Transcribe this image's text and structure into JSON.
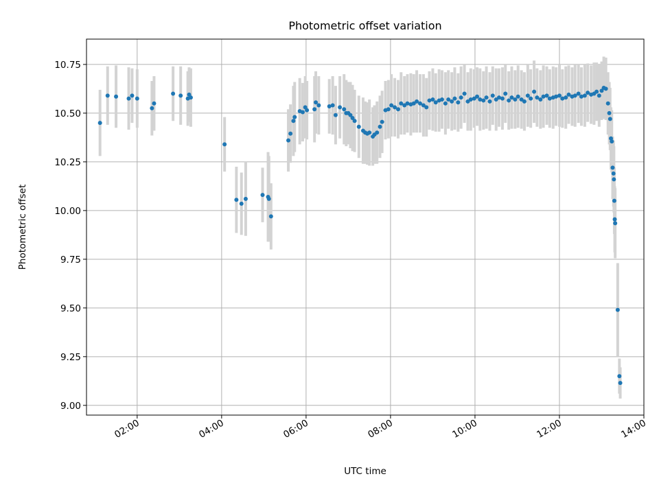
{
  "chart_data": {
    "type": "scatter",
    "title": "Photometric offset variation",
    "xlabel": "UTC time",
    "ylabel": "Photometric offset",
    "xlim_hours": [
      0.8,
      14.0
    ],
    "ylim": [
      8.95,
      10.88
    ],
    "grid": true,
    "x_ticks": [
      {
        "value": 2,
        "label": "02:00"
      },
      {
        "value": 4,
        "label": "04:00"
      },
      {
        "value": 6,
        "label": "06:00"
      },
      {
        "value": 8,
        "label": "08:00"
      },
      {
        "value": 10,
        "label": "10:00"
      },
      {
        "value": 12,
        "label": "12:00"
      },
      {
        "value": 14,
        "label": "14:00"
      }
    ],
    "y_ticks": [
      {
        "value": 9.0,
        "label": "9.00"
      },
      {
        "value": 9.25,
        "label": "9.25"
      },
      {
        "value": 9.5,
        "label": "9.50"
      },
      {
        "value": 9.75,
        "label": "9.75"
      },
      {
        "value": 10.0,
        "label": "10.00"
      },
      {
        "value": 10.25,
        "label": "10.25"
      },
      {
        "value": 10.5,
        "label": "10.50"
      },
      {
        "value": 10.75,
        "label": "10.75"
      }
    ],
    "marker_color": "#1f77b4",
    "errorbar_color": "#d3d3d3",
    "points": [
      [
        1.12,
        10.45,
        0.17
      ],
      [
        1.3,
        10.59,
        0.15
      ],
      [
        1.5,
        10.585,
        0.16
      ],
      [
        1.8,
        10.575,
        0.16
      ],
      [
        1.88,
        10.59,
        0.14
      ],
      [
        2.0,
        10.575,
        0.15
      ],
      [
        2.35,
        10.525,
        0.14
      ],
      [
        2.4,
        10.55,
        0.14
      ],
      [
        2.85,
        10.6,
        0.14
      ],
      [
        3.03,
        10.59,
        0.15
      ],
      [
        3.2,
        10.575,
        0.14
      ],
      [
        3.23,
        10.595,
        0.14
      ],
      [
        3.27,
        10.58,
        0.15
      ],
      [
        4.07,
        10.34,
        0.14
      ],
      [
        4.35,
        10.055,
        0.17
      ],
      [
        4.47,
        10.035,
        0.16
      ],
      [
        4.57,
        10.06,
        0.19
      ],
      [
        4.97,
        10.08,
        0.14
      ],
      [
        5.1,
        10.07,
        0.23
      ],
      [
        5.12,
        10.06,
        0.22
      ],
      [
        5.17,
        9.97,
        0.17
      ],
      [
        5.58,
        10.36,
        0.16
      ],
      [
        5.63,
        10.395,
        0.15
      ],
      [
        5.7,
        10.46,
        0.18
      ],
      [
        5.73,
        10.48,
        0.18
      ],
      [
        5.85,
        10.51,
        0.17
      ],
      [
        5.92,
        10.505,
        0.15
      ],
      [
        5.98,
        10.53,
        0.16
      ],
      [
        6.02,
        10.515,
        0.15
      ],
      [
        6.2,
        10.52,
        0.17
      ],
      [
        6.23,
        10.555,
        0.16
      ],
      [
        6.3,
        10.54,
        0.15
      ],
      [
        6.55,
        10.535,
        0.14
      ],
      [
        6.63,
        10.54,
        0.15
      ],
      [
        6.7,
        10.49,
        0.15
      ],
      [
        6.8,
        10.53,
        0.16
      ],
      [
        6.9,
        10.52,
        0.18
      ],
      [
        6.95,
        10.5,
        0.17
      ],
      [
        7.0,
        10.5,
        0.16
      ],
      [
        7.05,
        10.49,
        0.17
      ],
      [
        7.1,
        10.475,
        0.17
      ],
      [
        7.15,
        10.46,
        0.16
      ],
      [
        7.25,
        10.43,
        0.16
      ],
      [
        7.35,
        10.41,
        0.17
      ],
      [
        7.4,
        10.4,
        0.16
      ],
      [
        7.45,
        10.395,
        0.16
      ],
      [
        7.5,
        10.4,
        0.17
      ],
      [
        7.58,
        10.38,
        0.15
      ],
      [
        7.62,
        10.39,
        0.15
      ],
      [
        7.68,
        10.4,
        0.16
      ],
      [
        7.75,
        10.43,
        0.16
      ],
      [
        7.8,
        10.455,
        0.16
      ],
      [
        7.88,
        10.515,
        0.15
      ],
      [
        7.95,
        10.52,
        0.15
      ],
      [
        8.02,
        10.54,
        0.16
      ],
      [
        8.1,
        10.53,
        0.15
      ],
      [
        8.18,
        10.52,
        0.15
      ],
      [
        8.25,
        10.55,
        0.16
      ],
      [
        8.33,
        10.54,
        0.15
      ],
      [
        8.4,
        10.55,
        0.15
      ],
      [
        8.48,
        10.545,
        0.16
      ],
      [
        8.55,
        10.55,
        0.15
      ],
      [
        8.62,
        10.56,
        0.16
      ],
      [
        8.7,
        10.55,
        0.15
      ],
      [
        8.78,
        10.54,
        0.16
      ],
      [
        8.85,
        10.53,
        0.15
      ],
      [
        8.92,
        10.565,
        0.15
      ],
      [
        9.0,
        10.57,
        0.16
      ],
      [
        9.07,
        10.555,
        0.15
      ],
      [
        9.15,
        10.565,
        0.16
      ],
      [
        9.22,
        10.57,
        0.15
      ],
      [
        9.3,
        10.55,
        0.16
      ],
      [
        9.37,
        10.57,
        0.15
      ],
      [
        9.45,
        10.56,
        0.15
      ],
      [
        9.52,
        10.575,
        0.16
      ],
      [
        9.6,
        10.555,
        0.15
      ],
      [
        9.67,
        10.58,
        0.16
      ],
      [
        9.75,
        10.6,
        0.15
      ],
      [
        9.83,
        10.56,
        0.15
      ],
      [
        9.9,
        10.57,
        0.16
      ],
      [
        9.98,
        10.575,
        0.15
      ],
      [
        10.05,
        10.585,
        0.15
      ],
      [
        10.12,
        10.57,
        0.16
      ],
      [
        10.2,
        10.565,
        0.15
      ],
      [
        10.27,
        10.58,
        0.16
      ],
      [
        10.35,
        10.56,
        0.15
      ],
      [
        10.42,
        10.59,
        0.15
      ],
      [
        10.5,
        10.57,
        0.16
      ],
      [
        10.57,
        10.58,
        0.15
      ],
      [
        10.65,
        10.575,
        0.16
      ],
      [
        10.72,
        10.6,
        0.15
      ],
      [
        10.8,
        10.565,
        0.15
      ],
      [
        10.87,
        10.58,
        0.16
      ],
      [
        10.95,
        10.57,
        0.15
      ],
      [
        11.02,
        10.585,
        0.16
      ],
      [
        11.1,
        10.57,
        0.15
      ],
      [
        11.17,
        10.56,
        0.15
      ],
      [
        11.25,
        10.59,
        0.16
      ],
      [
        11.32,
        10.575,
        0.15
      ],
      [
        11.4,
        10.61,
        0.16
      ],
      [
        11.47,
        10.58,
        0.15
      ],
      [
        11.55,
        10.57,
        0.15
      ],
      [
        11.62,
        10.585,
        0.16
      ],
      [
        11.7,
        10.59,
        0.15
      ],
      [
        11.77,
        10.575,
        0.15
      ],
      [
        11.85,
        10.58,
        0.16
      ],
      [
        11.92,
        10.585,
        0.15
      ],
      [
        12.0,
        10.59,
        0.16
      ],
      [
        12.07,
        10.575,
        0.15
      ],
      [
        12.15,
        10.58,
        0.16
      ],
      [
        12.22,
        10.595,
        0.15
      ],
      [
        12.3,
        10.585,
        0.15
      ],
      [
        12.37,
        10.59,
        0.16
      ],
      [
        12.45,
        10.6,
        0.15
      ],
      [
        12.52,
        10.585,
        0.15
      ],
      [
        12.6,
        10.59,
        0.16
      ],
      [
        12.67,
        10.605,
        0.15
      ],
      [
        12.75,
        10.595,
        0.15
      ],
      [
        12.82,
        10.6,
        0.16
      ],
      [
        12.88,
        10.61,
        0.15
      ],
      [
        12.94,
        10.59,
        0.16
      ],
      [
        13.0,
        10.615,
        0.15
      ],
      [
        13.05,
        10.63,
        0.16
      ],
      [
        13.1,
        10.625,
        0.16
      ],
      [
        13.15,
        10.55,
        0.16
      ],
      [
        13.18,
        10.5,
        0.16
      ],
      [
        13.2,
        10.47,
        0.16
      ],
      [
        13.22,
        10.37,
        0.16
      ],
      [
        13.24,
        10.355,
        0.16
      ],
      [
        13.26,
        10.22,
        0.16
      ],
      [
        13.28,
        10.19,
        0.17
      ],
      [
        13.29,
        10.16,
        0.17
      ],
      [
        13.3,
        10.05,
        0.17
      ],
      [
        13.31,
        9.955,
        0.17
      ],
      [
        13.32,
        9.935,
        0.18
      ],
      [
        13.38,
        9.49,
        0.24
      ],
      [
        13.42,
        9.15,
        0.09
      ],
      [
        13.44,
        9.115,
        0.08
      ]
    ]
  }
}
